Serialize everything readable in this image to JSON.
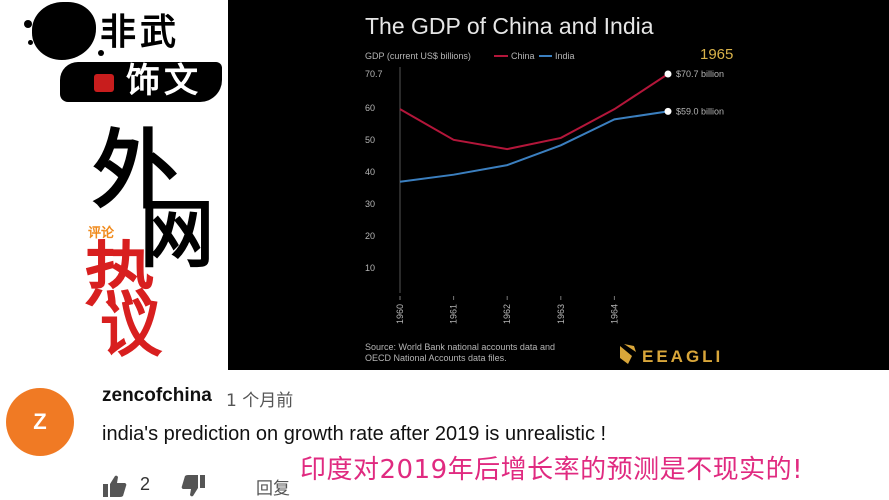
{
  "brand": {
    "line1": "非武",
    "line2": "饰文",
    "big1": "外",
    "big2": "网",
    "small": "评论",
    "big3": "热",
    "big4": "议"
  },
  "video": {
    "watermark": "EEAGLI",
    "year_badge": "1965",
    "source_note": [
      "Source: World Bank national accounts data and",
      "OECD National Accounts data files."
    ]
  },
  "chart_data": {
    "type": "line",
    "title": "The GDP of China and India",
    "ylabel": "GDP (current US$ billions)",
    "x": [
      1960,
      1961,
      1962,
      1963,
      1964,
      1965
    ],
    "x_tick_labels": [
      "1960",
      "1961",
      "1962",
      "1963",
      "1964"
    ],
    "y_tick_labels": [
      "70.7",
      "60",
      "50",
      "40",
      "30",
      "20",
      "10"
    ],
    "ylim": [
      0,
      70.7
    ],
    "series": [
      {
        "name": "China",
        "color": "#b3163a",
        "values": [
          59.7,
          50.1,
          47.2,
          50.7,
          59.7,
          70.7
        ]
      },
      {
        "name": "India",
        "color": "#3b7fbf",
        "values": [
          37.0,
          39.2,
          42.2,
          48.4,
          56.5,
          59.0
        ]
      }
    ],
    "end_labels": [
      "$70.7 billion",
      "$59.0 billion"
    ],
    "legend": "top-left",
    "grid": false
  },
  "comment": {
    "author": "zencofchina",
    "time": "1 个月前",
    "avatar_letter": "Z",
    "avatar_color": "#f07a24",
    "text": "india's prediction on growth rate after 2019 is  unrealistic !",
    "likes": "2",
    "reply_label": "回复"
  },
  "subtitle": "印度对2019年后增长率的预测是不现实的!"
}
